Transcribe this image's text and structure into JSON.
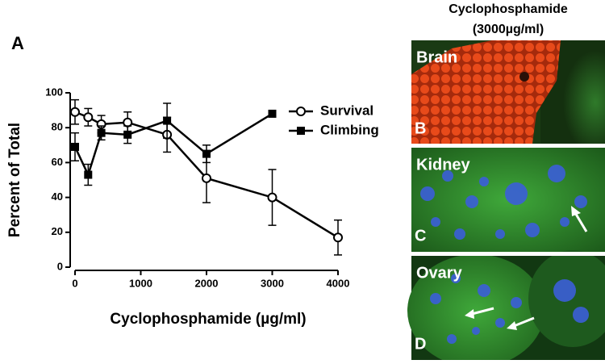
{
  "panel_label": "A",
  "chart_data": {
    "type": "line",
    "xlabel": "Cyclophosphamide (µg/ml)",
    "ylabel": "Percent of Total",
    "xlim": [
      0,
      4000
    ],
    "xticks": [
      0,
      1000,
      2000,
      3000,
      4000
    ],
    "ylim": [
      0,
      100
    ],
    "yticks": [
      0,
      20,
      40,
      60,
      80,
      100
    ],
    "series": [
      {
        "name": "Survival",
        "marker": "circle-open",
        "color": "#000000",
        "x": [
          0,
          200,
          400,
          800,
          1400,
          2000,
          3000,
          4000
        ],
        "values": [
          89,
          86,
          82,
          83,
          76,
          51,
          40,
          17
        ],
        "errors": [
          7,
          5,
          5,
          6,
          10,
          14,
          16,
          10
        ]
      },
      {
        "name": "Climbing",
        "marker": "square",
        "color": "#000000",
        "x": [
          0,
          200,
          400,
          800,
          1400,
          2000,
          3000
        ],
        "values": [
          69,
          53,
          77,
          76,
          84,
          65,
          88
        ],
        "errors": [
          8,
          6,
          4,
          5,
          10,
          5,
          null
        ]
      }
    ],
    "legend": "upper-right"
  },
  "images": {
    "title": [
      "Cyclophosphamide",
      "(3000µg/ml)"
    ],
    "panels": [
      {
        "name": "Brain",
        "letter": "B"
      },
      {
        "name": "Kidney",
        "letter": "C"
      },
      {
        "name": "Ovary",
        "letter": "D"
      }
    ]
  }
}
